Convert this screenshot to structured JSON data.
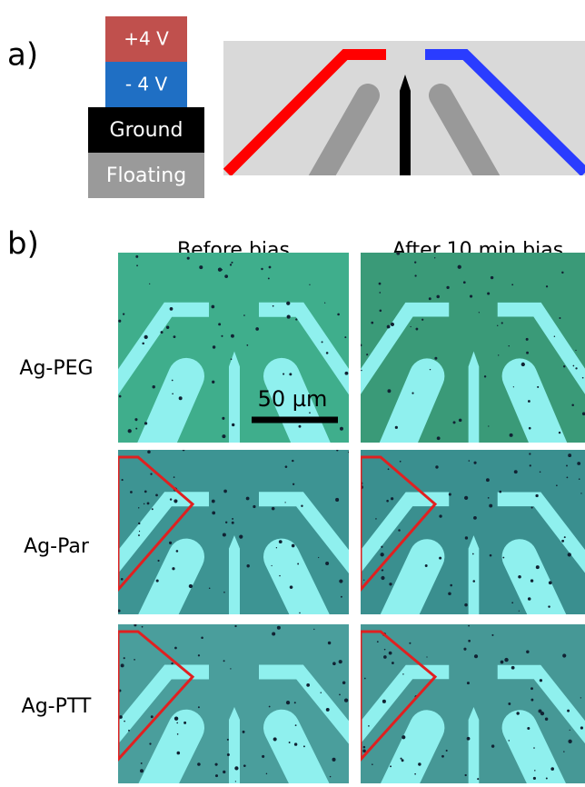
{
  "panel_a": {
    "label": "a)",
    "legend": [
      "+4 V",
      "- 4 V",
      "Ground",
      "Floating"
    ]
  },
  "panel_b": {
    "label": "b)",
    "columns": [
      "Before bias",
      "After 10 min bias"
    ],
    "rows": [
      "Ag-PEG",
      "Ag-Par",
      "Ag-PTT"
    ],
    "scale_bar": "50 µm"
  }
}
